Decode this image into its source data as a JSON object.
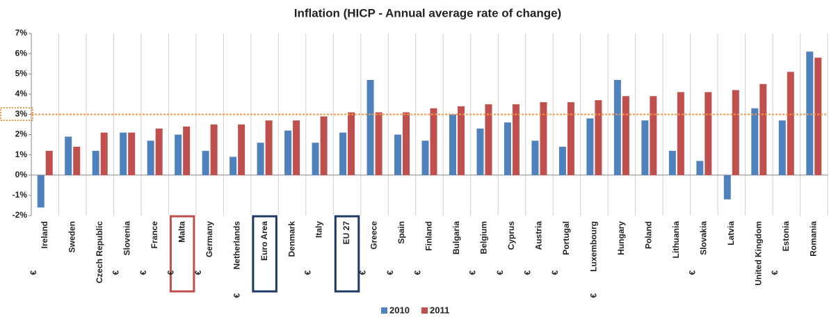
{
  "chart_data": {
    "type": "bar",
    "title": "Inflation (HICP - Annual average rate of change)",
    "categories": [
      "Ireland",
      "Sweden",
      "Czech Republic",
      "Slovenia",
      "France",
      "Malta",
      "Germany",
      "Netherlands",
      "Euro Area",
      "Denmark",
      "Italy",
      "EU 27",
      "Greece",
      "Spain",
      "Finland",
      "Bulgaria",
      "Belgium",
      "Cyprus",
      "Austria",
      "Portugal",
      "Luxembourg",
      "Hungary",
      "Poland",
      "Lithuania",
      "Slovakia",
      "Latvia",
      "United Kingdom",
      "Estonia",
      "Romania"
    ],
    "euro": [
      "€",
      null,
      null,
      "€",
      "€",
      "€",
      "€",
      "€",
      null,
      null,
      "€",
      null,
      "€",
      "€",
      "€",
      null,
      "€",
      "€",
      "€",
      "€",
      "€",
      null,
      null,
      null,
      "€",
      null,
      null,
      "€",
      null
    ],
    "series": [
      {
        "name": "2010",
        "color": "#4f81bd",
        "values": [
          -1.6,
          1.9,
          1.2,
          2.1,
          1.7,
          2.0,
          1.2,
          0.9,
          1.6,
          2.2,
          1.6,
          2.1,
          4.7,
          2.0,
          1.7,
          3.0,
          2.3,
          2.6,
          1.7,
          1.4,
          2.8,
          4.7,
          2.7,
          1.2,
          0.7,
          -1.2,
          3.3,
          2.7,
          6.1
        ]
      },
      {
        "name": "2011",
        "color": "#c0504d",
        "values": [
          1.2,
          1.4,
          2.1,
          2.1,
          2.3,
          2.4,
          2.5,
          2.5,
          2.7,
          2.7,
          2.9,
          3.1,
          3.1,
          3.1,
          3.3,
          3.4,
          3.5,
          3.5,
          3.6,
          3.6,
          3.7,
          3.9,
          3.9,
          4.1,
          4.1,
          4.2,
          4.5,
          5.1,
          5.8
        ]
      }
    ],
    "ylim": [
      -2,
      7
    ],
    "yticks": [
      {
        "value": -2,
        "label": "-2%"
      },
      {
        "value": -1,
        "label": "-1%"
      },
      {
        "value": 0,
        "label": "0%"
      },
      {
        "value": 1,
        "label": "1%"
      },
      {
        "value": 2,
        "label": "2%"
      },
      {
        "value": 3,
        "label": "3%"
      },
      {
        "value": 4,
        "label": "4%"
      },
      {
        "value": 5,
        "label": "5%"
      },
      {
        "value": 6,
        "label": "6%"
      },
      {
        "value": 7,
        "label": "7%"
      }
    ],
    "reference_line": 3,
    "reference_color": "#f79646",
    "legend": "bottom"
  }
}
